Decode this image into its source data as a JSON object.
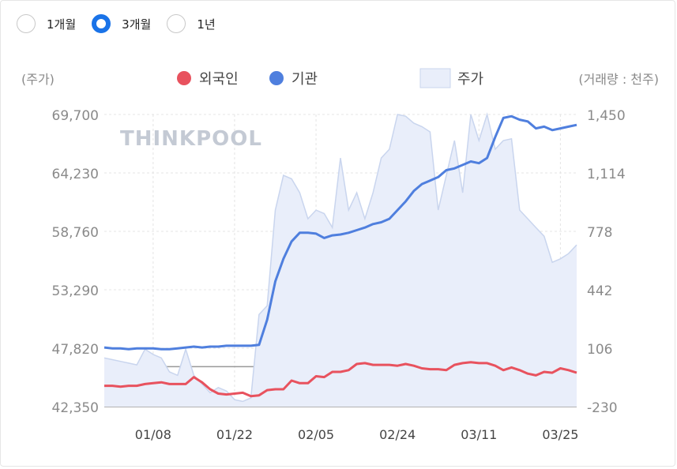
{
  "period_options": [
    {
      "label": "1개월",
      "selected": false
    },
    {
      "label": "3개월",
      "selected": true
    },
    {
      "label": "1년",
      "selected": false
    }
  ],
  "watermark": "THINKPOOL",
  "colors": {
    "foreign": "#e8525e",
    "institution": "#4f7fde",
    "price_fill": "#e9eefa",
    "price_line": "#c9d5ee",
    "accent": "#1a73e8"
  },
  "chart_data": {
    "type": "line",
    "left_axis_label": "(주가)",
    "right_axis_label": "(거래량 : 천주)",
    "left_ticks": [
      "69,700",
      "64,230",
      "58,760",
      "53,290",
      "47,820",
      "42,350"
    ],
    "right_ticks": [
      "1,450",
      "1,114",
      "778",
      "442",
      "106",
      "-230"
    ],
    "left_range": [
      42350,
      69700
    ],
    "right_range": [
      -230,
      1450
    ],
    "x_labels": [
      "01/08",
      "01/22",
      "02/05",
      "02/24",
      "03/11",
      "03/25"
    ],
    "x_label_index": [
      6,
      16,
      26,
      36,
      46,
      56
    ],
    "series": [
      {
        "name": "외국인",
        "key": "foreign",
        "axis": "right",
        "values": [
          -110,
          -110,
          -115,
          -110,
          -110,
          -100,
          -95,
          -90,
          -100,
          -100,
          -100,
          -60,
          -90,
          -130,
          -155,
          -160,
          -155,
          -150,
          -170,
          -165,
          -135,
          -130,
          -130,
          -80,
          -95,
          -95,
          -55,
          -60,
          -30,
          -30,
          -20,
          15,
          20,
          10,
          10,
          10,
          5,
          15,
          5,
          -10,
          -15,
          -15,
          -20,
          10,
          20,
          25,
          20,
          20,
          5,
          -20,
          -5,
          -20,
          -40,
          -50,
          -30,
          -35,
          -10,
          -20,
          -35
        ]
      },
      {
        "name": "기관",
        "key": "institution",
        "axis": "right",
        "values": [
          110,
          105,
          105,
          100,
          105,
          105,
          105,
          100,
          100,
          105,
          110,
          115,
          110,
          115,
          115,
          120,
          120,
          120,
          120,
          125,
          270,
          490,
          620,
          720,
          770,
          770,
          765,
          740,
          755,
          760,
          770,
          785,
          800,
          820,
          830,
          850,
          900,
          950,
          1010,
          1050,
          1070,
          1090,
          1130,
          1140,
          1160,
          1180,
          1170,
          1200,
          1320,
          1430,
          1440,
          1420,
          1410,
          1370,
          1380,
          1360,
          1370,
          1380,
          1390
        ]
      },
      {
        "name": "주가",
        "key": "price",
        "axis": "right",
        "fill": true,
        "values": [
          50,
          40,
          30,
          20,
          10,
          100,
          70,
          50,
          -30,
          -50,
          100,
          -50,
          -100,
          -150,
          -120,
          -140,
          -190,
          -200,
          -180,
          300,
          350,
          900,
          1100,
          1080,
          1000,
          850,
          900,
          880,
          800,
          1200,
          900,
          1000,
          850,
          1000,
          1200,
          1250,
          1450,
          1440,
          1400,
          1380,
          1350,
          900,
          1100,
          1300,
          1000,
          1450,
          1300,
          1450,
          1250,
          1300,
          1310,
          900,
          850,
          800,
          750,
          600,
          620,
          650,
          700
        ]
      }
    ]
  }
}
